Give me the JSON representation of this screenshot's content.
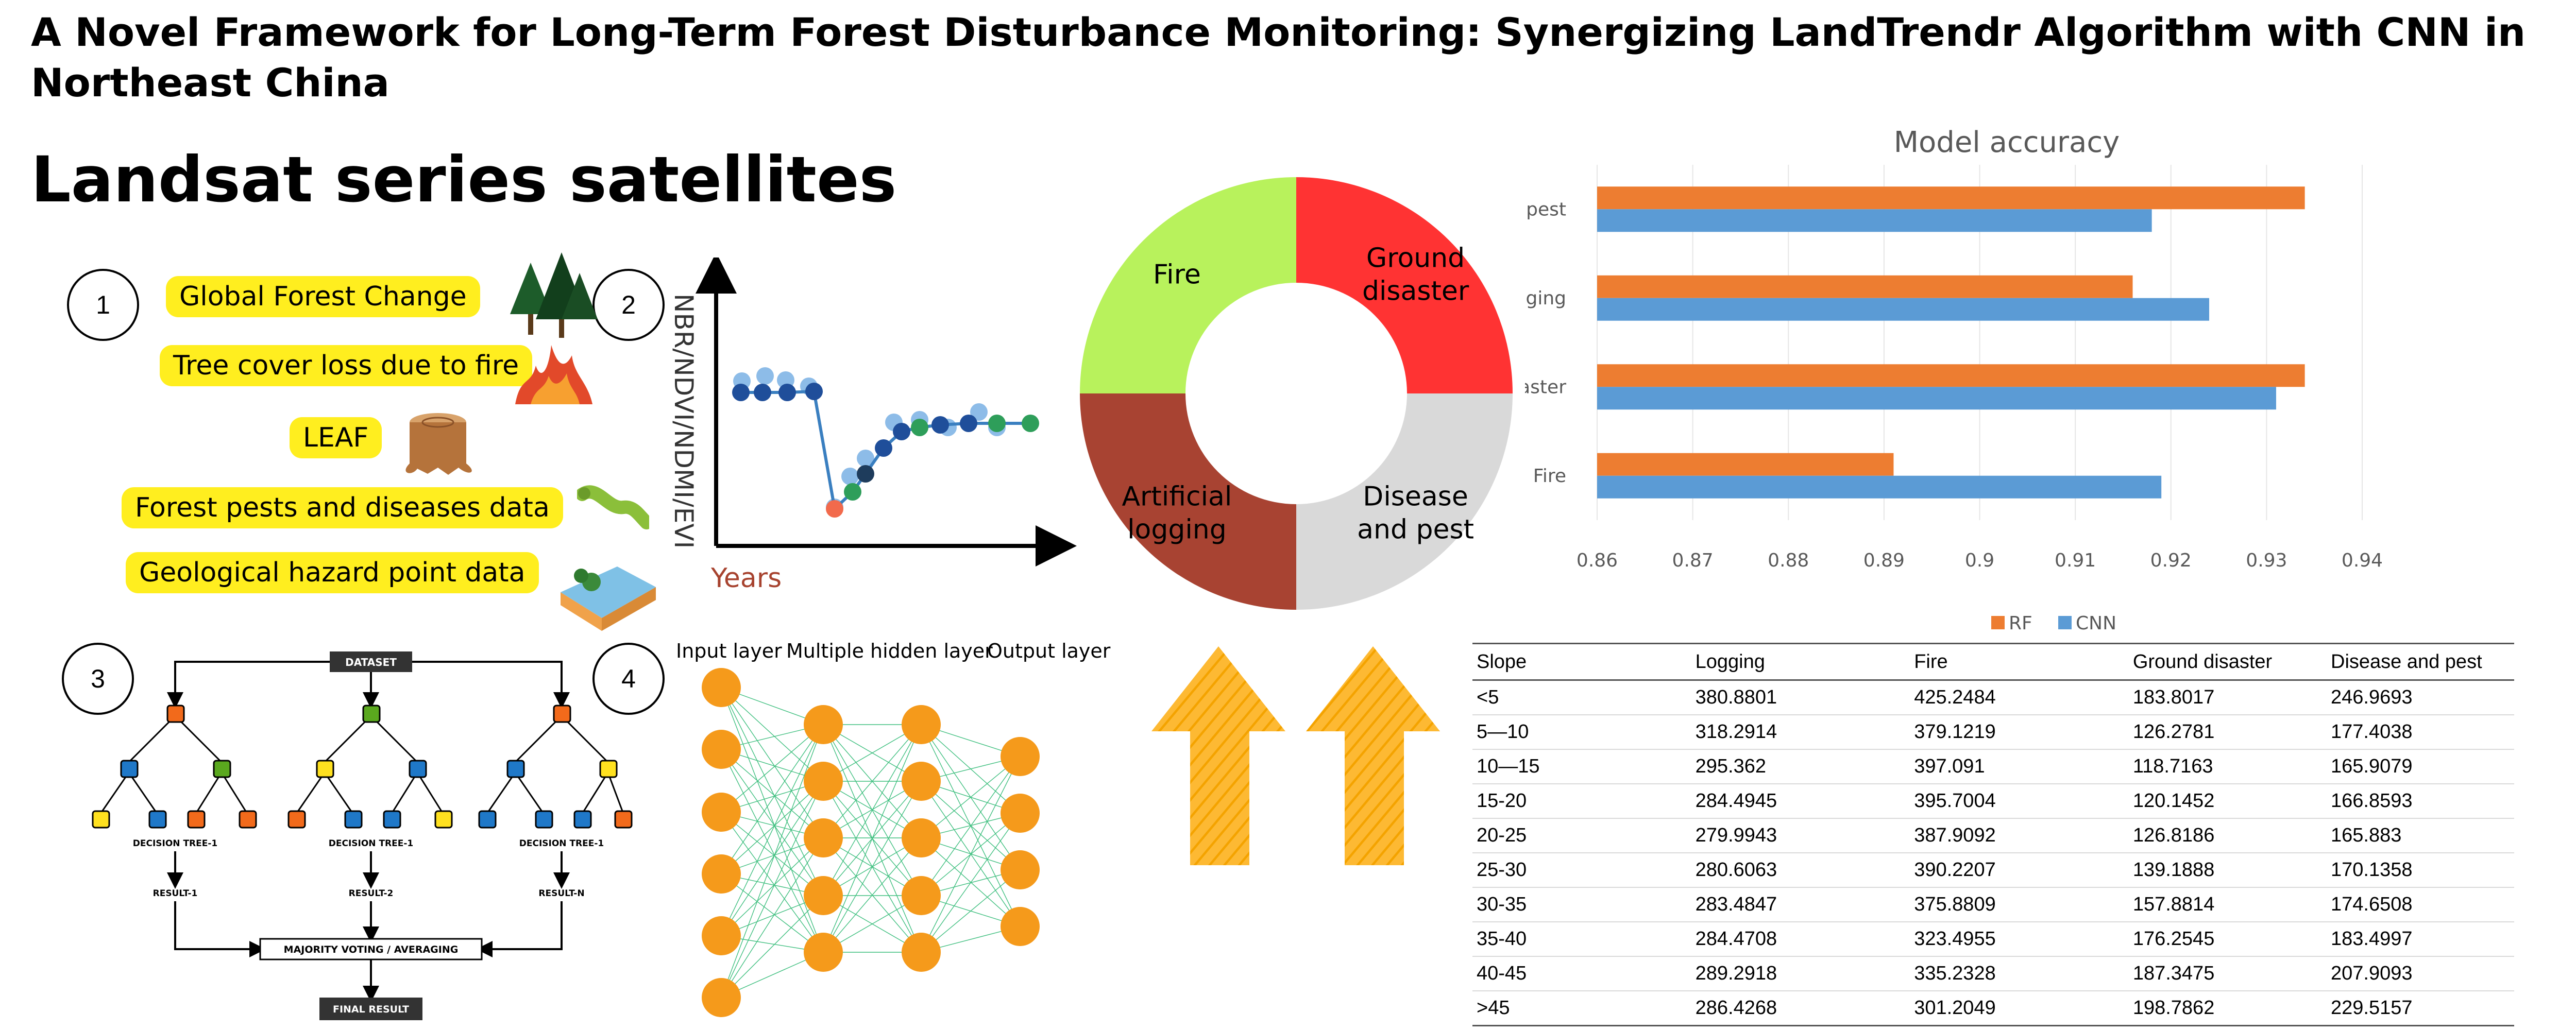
{
  "header": {
    "title": "A Novel Framework for Long-Term Forest Disturbance Monitoring: Synergizing LandTrendr Algorithm with CNN in Northeast China",
    "subtitle": "Landsat series satellites"
  },
  "steps": [
    "1",
    "2",
    "3",
    "4"
  ],
  "datasets": [
    "Global Forest Change",
    "Tree cover loss due to fire",
    "LEAF",
    "Forest pests and diseases data",
    "Geological hazard point data"
  ],
  "trajectory": {
    "ylabel": "NBR/NDVI/NDMI/EVI",
    "xlabel": "Years"
  },
  "random_forest": {
    "dataset": "DATASET",
    "trees": [
      "DECISION TREE-1",
      "DECISION TREE-1",
      "DECISION TREE-1"
    ],
    "results": [
      "RESULT-1",
      "RESULT-2",
      "RESULT-N"
    ],
    "voting": "MAJORITY VOTING / AVERAGING",
    "final": "FINAL RESULT"
  },
  "cnn": {
    "input": "Input layer",
    "hidden": "Multiple hidden layer",
    "output": "Output layer"
  },
  "donut": {
    "segments": [
      {
        "label_lines": [
          "Fire"
        ],
        "color": "#b8f25c",
        "text_color": "#000000"
      },
      {
        "label_lines": [
          "Ground",
          "disaster"
        ],
        "color": "#ff3333",
        "text_color": "#000000"
      },
      {
        "label_lines": [
          "Artificial",
          "logging"
        ],
        "color": "#a84332",
        "text_color": "#000000"
      },
      {
        "label_lines": [
          "Disease",
          "and pest"
        ],
        "color": "#d9d9d9",
        "text_color": "#000000"
      }
    ]
  },
  "chart_data": {
    "type": "bar",
    "orientation": "horizontal",
    "title": "Model accuracy",
    "categories": [
      "Disease and pest",
      "Artficial logging",
      "Ground disaster",
      "Fire"
    ],
    "series": [
      {
        "name": "RF",
        "color": "#ed7d31",
        "values": [
          0.934,
          0.916,
          0.934,
          0.891
        ]
      },
      {
        "name": "CNN",
        "color": "#5b9bd5",
        "values": [
          0.918,
          0.924,
          0.931,
          0.919
        ]
      }
    ],
    "xlim": [
      0.86,
      0.94
    ],
    "ticks": [
      "0.86",
      "0.87",
      "0.88",
      "0.89",
      "0.9",
      "0.91",
      "0.92",
      "0.93",
      "0.94"
    ],
    "legend": "bottom"
  },
  "table": {
    "headers": [
      "Slope",
      "Logging",
      "Fire",
      "Ground disaster",
      "Disease and pest"
    ],
    "rows": [
      [
        "<5",
        "380.8801",
        "425.2484",
        "183.8017",
        "246.9693"
      ],
      [
        "5—10",
        "318.2914",
        "379.1219",
        "126.2781",
        "177.4038"
      ],
      [
        "10—15",
        "295.362",
        "397.091",
        "118.7163",
        "165.9079"
      ],
      [
        "15-20",
        "284.4945",
        "395.7004",
        "120.1452",
        "166.8593"
      ],
      [
        "20-25",
        "279.9943",
        "387.9092",
        "126.8186",
        "165.883"
      ],
      [
        "25-30",
        "280.6063",
        "390.2207",
        "139.1888",
        "170.1358"
      ],
      [
        "30-35",
        "283.4847",
        "375.8809",
        "157.8814",
        "174.6508"
      ],
      [
        "35-40",
        "284.4708",
        "323.4955",
        "176.2545",
        "183.4997"
      ],
      [
        "40-45",
        "289.2918",
        "335.2328",
        "187.3475",
        "207.9093"
      ],
      [
        ">45",
        "286.4268",
        "301.2049",
        "198.7862",
        "229.5157"
      ]
    ]
  }
}
